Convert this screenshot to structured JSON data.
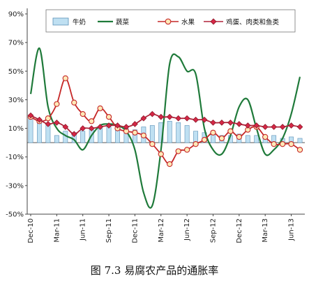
{
  "caption": "图 7.3  易腐农产品的通胀率",
  "chart_data": {
    "type": "bar+line",
    "x_tick_labels": [
      "Dec-10",
      "Mar-11",
      "Jun-11",
      "Sep-11",
      "Dec-11",
      "Mar-12",
      "Jun-12",
      "Sep-12",
      "Dec-12",
      "Mar-13",
      "Jun-13"
    ],
    "y_tick_labels": [
      "90%",
      "70%",
      "50%",
      "30%",
      "10%",
      "-10%",
      "-30%",
      "-50%"
    ],
    "ylim": [
      -50,
      90
    ],
    "grid": "none",
    "legend_position": "top-inside",
    "months": [
      "Dec-10",
      "Jan-11",
      "Feb-11",
      "Mar-11",
      "Apr-11",
      "May-11",
      "Jun-11",
      "Jul-11",
      "Aug-11",
      "Sep-11",
      "Oct-11",
      "Nov-11",
      "Dec-11",
      "Jan-12",
      "Feb-12",
      "Mar-12",
      "Apr-12",
      "May-12",
      "Jun-12",
      "Jul-12",
      "Aug-12",
      "Sep-12",
      "Oct-12",
      "Nov-12",
      "Dec-12",
      "Jan-13",
      "Feb-13",
      "Mar-13",
      "Apr-13",
      "May-13",
      "Jun-13",
      "Jul-13"
    ],
    "series": [
      {
        "name": "牛奶",
        "kind": "bar",
        "color": "#bfe0f2",
        "edge": "#5a8fb6",
        "values": [
          19,
          16,
          12,
          5,
          8,
          7,
          8,
          9,
          10,
          11,
          12,
          10,
          9,
          11,
          12,
          14,
          15,
          14,
          12,
          8,
          7,
          6,
          5,
          5,
          6,
          5,
          5,
          4,
          5,
          3,
          4,
          3
        ]
      },
      {
        "name": "蔬菜",
        "kind": "line",
        "color": "#1f7a3a",
        "values": [
          34,
          66,
          25,
          10,
          5,
          2,
          -5,
          5,
          12,
          13,
          12,
          8,
          -5,
          -35,
          -44,
          -5,
          55,
          60,
          50,
          48,
          10,
          -5,
          -8,
          5,
          25,
          30,
          10,
          -8,
          -5,
          3,
          20,
          46
        ]
      },
      {
        "name": "水果",
        "kind": "line_marker",
        "color": "#c62828",
        "marker_fill": "#fde9b8",
        "values": [
          18,
          15,
          17,
          27,
          45,
          28,
          20,
          15,
          24,
          18,
          10,
          8,
          7,
          5,
          -1,
          -8,
          -15,
          -6,
          -5,
          -1,
          2,
          7,
          3,
          8,
          4,
          9,
          11,
          4,
          -1,
          -1,
          -1,
          -5
        ]
      },
      {
        "name": "鸡蛋、肉类和鱼类",
        "kind": "line_marker",
        "color": "#b0243a",
        "marker_fill": "#d62746",
        "values": [
          19,
          16,
          13,
          14,
          11,
          6,
          10,
          10,
          11,
          12,
          12,
          11,
          13,
          17,
          20,
          18,
          18,
          17,
          17,
          16,
          16,
          14,
          14,
          14,
          13,
          12,
          12,
          11,
          11,
          11,
          12,
          11
        ]
      }
    ]
  }
}
